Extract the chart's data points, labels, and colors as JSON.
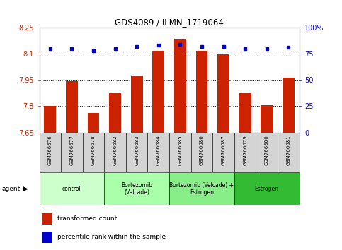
{
  "title": "GDS4089 / ILMN_1719064",
  "samples": [
    "GSM766676",
    "GSM766677",
    "GSM766678",
    "GSM766682",
    "GSM766683",
    "GSM766684",
    "GSM766685",
    "GSM766686",
    "GSM766687",
    "GSM766679",
    "GSM766680",
    "GSM766681"
  ],
  "transformed_count": [
    7.8,
    7.945,
    7.76,
    7.875,
    7.975,
    8.115,
    8.185,
    8.115,
    8.095,
    7.875,
    7.805,
    7.965
  ],
  "percentile_rank": [
    80,
    80,
    78,
    80,
    82,
    83,
    84,
    82,
    82,
    80,
    80,
    81
  ],
  "groups": [
    {
      "label": "control",
      "start": 0,
      "end": 3,
      "color": "#ccffcc"
    },
    {
      "label": "Bortezomib\n(Velcade)",
      "start": 3,
      "end": 6,
      "color": "#aaffaa"
    },
    {
      "label": "Bortezomib (Velcade) +\nEstrogen",
      "start": 6,
      "end": 9,
      "color": "#88ee88"
    },
    {
      "label": "Estrogen",
      "start": 9,
      "end": 12,
      "color": "#33bb33"
    }
  ],
  "ylim_left": [
    7.65,
    8.25
  ],
  "yticks_left": [
    7.65,
    7.8,
    7.95,
    8.1,
    8.25
  ],
  "ylim_right": [
    0,
    100
  ],
  "yticks_right": [
    0,
    25,
    50,
    75,
    100
  ],
  "bar_color": "#cc2200",
  "dot_color": "#0000cc",
  "bar_bottom": 7.65,
  "legend_label_bar": "transformed count",
  "legend_label_dot": "percentile rank within the sample",
  "agent_label": "agent"
}
